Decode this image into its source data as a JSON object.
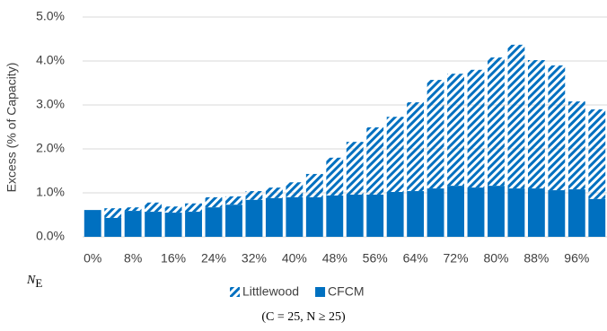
{
  "chart_data": {
    "type": "stacked_bar",
    "subtitle": "(C = 25, N ≥ 25)",
    "y_label": "Excess (% of Capacity)",
    "x_label": {
      "symbol": "N",
      "subscript": "E"
    },
    "categories": [
      "0%",
      null,
      "8%",
      null,
      "16%",
      null,
      "24%",
      null,
      "32%",
      null,
      "40%",
      null,
      "48%",
      null,
      "56%",
      null,
      "64%",
      null,
      "72%",
      null,
      "80%",
      null,
      "88%",
      null,
      "96%",
      null
    ],
    "series": [
      {
        "name": "Littlewood",
        "color": "#0070c0",
        "pattern": "hatch",
        "values": [
          0,
          0.22,
          0.08,
          0.21,
          0.14,
          0.19,
          0.23,
          0.19,
          0.2,
          0.24,
          0.34,
          0.53,
          0.86,
          1.2,
          1.53,
          1.71,
          2.02,
          2.47,
          2.55,
          2.68,
          2.92,
          3.27,
          2.92,
          2.84,
          2.0,
          2.04
        ]
      },
      {
        "name": "CFCM",
        "color": "#0070c0",
        "pattern": "solid",
        "values": [
          0.61,
          0.43,
          0.59,
          0.57,
          0.55,
          0.57,
          0.67,
          0.73,
          0.84,
          0.88,
          0.9,
          0.9,
          0.94,
          0.96,
          0.96,
          1.02,
          1.04,
          1.1,
          1.16,
          1.12,
          1.16,
          1.1,
          1.1,
          1.06,
          1.08,
          0.86
        ]
      }
    ],
    "ylim": [
      0,
      5
    ],
    "yticks": [
      {
        "value": 0,
        "label": "0.0%"
      },
      {
        "value": 1,
        "label": "1.0%"
      },
      {
        "value": 2,
        "label": "2.0%"
      },
      {
        "value": 3,
        "label": "3.0%"
      },
      {
        "value": 4,
        "label": "4.0%"
      },
      {
        "value": 5,
        "label": "5.0%"
      }
    ],
    "grid": true,
    "legend": "bottom"
  }
}
